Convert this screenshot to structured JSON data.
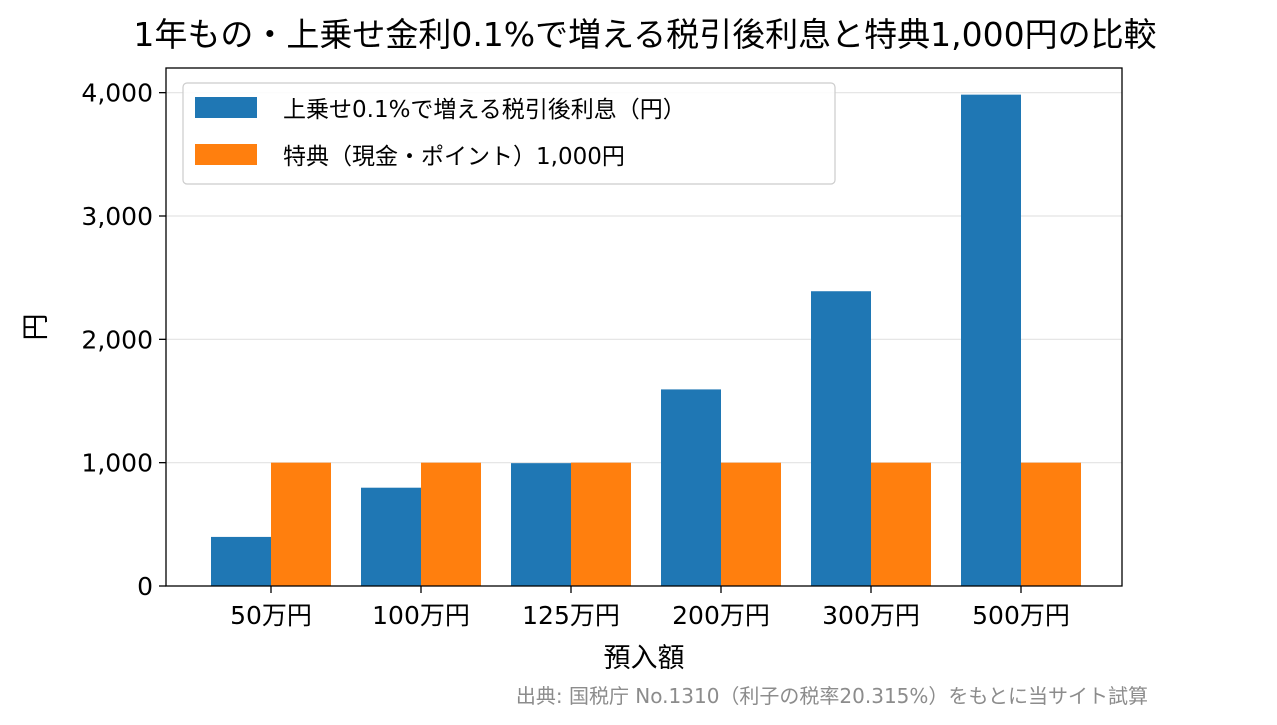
{
  "chart_data": {
    "type": "bar",
    "title": "1年もの・上乗せ金利0.1%で増える税引後利息と特典1,000円の比較",
    "xlabel": "預入額",
    "ylabel": "円",
    "categories": [
      "50万円",
      "100万円",
      "125万円",
      "200万円",
      "300万円",
      "500万円"
    ],
    "series": [
      {
        "name": "上乗せ0.1%で増える税引後利息（円）",
        "values": [
          398,
          797,
          996,
          1594,
          2390,
          3984
        ],
        "color": "#1f77b4"
      },
      {
        "name": "特典（現金・ポイント）1,000円",
        "values": [
          1000,
          1000,
          1000,
          1000,
          1000,
          1000
        ],
        "color": "#ff7f0e"
      }
    ],
    "ylim": [
      0,
      4200
    ],
    "yticks": [
      0,
      1000,
      2000,
      3000,
      4000
    ],
    "ytick_labels": [
      "0",
      "1,000",
      "2,000",
      "3,000",
      "4,000"
    ],
    "grid": "horizontal",
    "legend_position": "upper-left",
    "source_note": "出典: 国税庁 No.1310（利子の税率20.315%）をもとに当サイト試算"
  }
}
